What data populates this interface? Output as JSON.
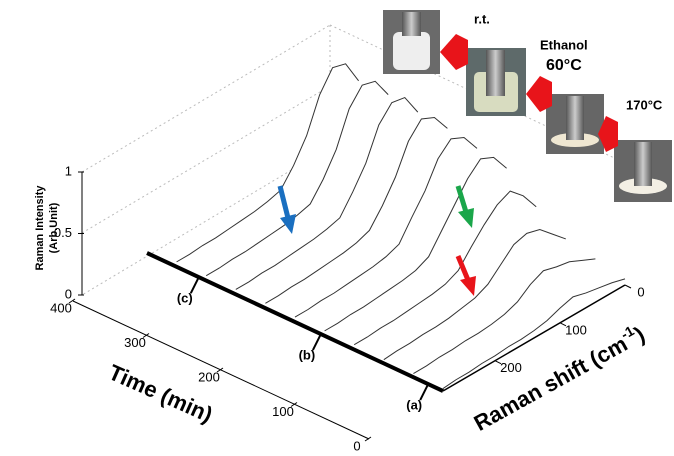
{
  "chart_data": {
    "type": "waterfall3d",
    "zlabel": [
      "Raman Intensity",
      "(Arb.Unit)"
    ],
    "tlabel": "Time (min)",
    "slabel": {
      "text": "Raman shift (cm",
      "sup": "-1",
      "end": ")"
    },
    "tlim": [
      0,
      400
    ],
    "tticks": [
      0,
      100,
      200,
      300,
      400
    ],
    "slim": [
      0,
      280
    ],
    "sticks": [
      0,
      100,
      200
    ],
    "zlim": [
      0,
      1
    ],
    "zticks": [
      0,
      0.5,
      1
    ],
    "color": "#333333",
    "times": [
      0,
      40,
      80,
      120,
      160,
      200,
      240,
      280,
      320,
      360
    ],
    "shifts": [
      0,
      20,
      40,
      60,
      80,
      100,
      120,
      140,
      160,
      180,
      200,
      220,
      240,
      260,
      280
    ],
    "z": [
      [
        0.05,
        0.08,
        0.1,
        0.12,
        0.15,
        0.12,
        0.08,
        0.06,
        0.05,
        0.05,
        0.04,
        0.04,
        0.03,
        0.03,
        0.02
      ],
      [
        0.1,
        0.15,
        0.2,
        0.22,
        0.25,
        0.2,
        0.12,
        0.08,
        0.06,
        0.05,
        0.05,
        0.04,
        0.04,
        0.03,
        0.03
      ],
      [
        0.15,
        0.25,
        0.35,
        0.38,
        0.35,
        0.25,
        0.15,
        0.1,
        0.08,
        0.06,
        0.05,
        0.05,
        0.04,
        0.04,
        0.03
      ],
      [
        0.3,
        0.45,
        0.55,
        0.5,
        0.4,
        0.28,
        0.15,
        0.1,
        0.08,
        0.07,
        0.06,
        0.05,
        0.05,
        0.04,
        0.04
      ],
      [
        0.5,
        0.65,
        0.7,
        0.6,
        0.45,
        0.3,
        0.15,
        0.1,
        0.08,
        0.07,
        0.06,
        0.05,
        0.05,
        0.04,
        0.04
      ],
      [
        0.55,
        0.7,
        0.75,
        0.65,
        0.45,
        0.3,
        0.14,
        0.1,
        0.08,
        0.07,
        0.06,
        0.05,
        0.05,
        0.04,
        0.04
      ],
      [
        0.6,
        0.75,
        0.8,
        0.68,
        0.45,
        0.28,
        0.14,
        0.1,
        0.08,
        0.07,
        0.06,
        0.05,
        0.05,
        0.04,
        0.04
      ],
      [
        0.62,
        0.8,
        0.82,
        0.7,
        0.45,
        0.28,
        0.13,
        0.1,
        0.08,
        0.07,
        0.06,
        0.05,
        0.05,
        0.04,
        0.04
      ],
      [
        0.65,
        0.82,
        0.85,
        0.72,
        0.45,
        0.27,
        0.13,
        0.1,
        0.08,
        0.07,
        0.06,
        0.05,
        0.05,
        0.04,
        0.04
      ],
      [
        0.65,
        0.85,
        0.88,
        0.72,
        0.45,
        0.27,
        0.13,
        0.1,
        0.08,
        0.07,
        0.06,
        0.05,
        0.05,
        0.04,
        0.04
      ]
    ],
    "markers": [
      {
        "label": "(a)",
        "time": 20
      },
      {
        "label": "(b)",
        "time": 165
      },
      {
        "label": "(c)",
        "time": 330
      }
    ],
    "photos": [
      "r.t.",
      "Ethanol",
      "60°C",
      "170°C"
    ]
  }
}
